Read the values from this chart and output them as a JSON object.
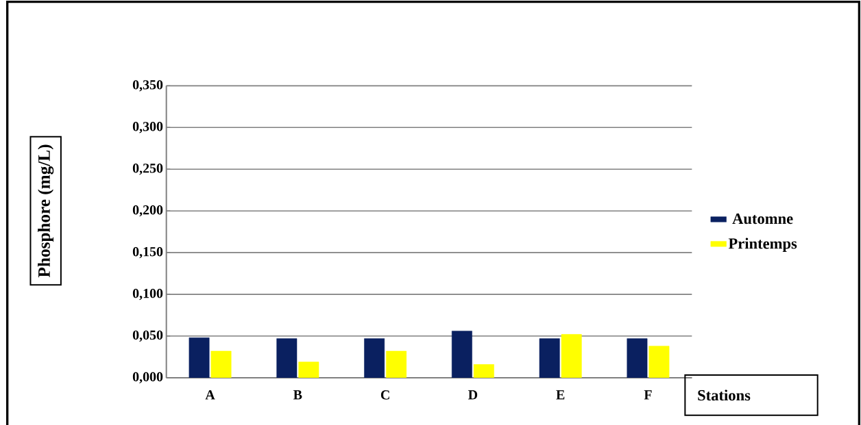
{
  "chart_data": {
    "type": "bar",
    "xlabel": "Stations",
    "ylabel": "Phosphore (mg/L)",
    "categories": [
      "A",
      "B",
      "C",
      "D",
      "E",
      "F"
    ],
    "series": [
      {
        "name": "Automne",
        "color": "#0a2060",
        "values": [
          0.048,
          0.047,
          0.047,
          0.056,
          0.047,
          0.047
        ]
      },
      {
        "name": "Printemps",
        "color": "#ffff00",
        "values": [
          0.032,
          0.019,
          0.032,
          0.016,
          0.052,
          0.038
        ]
      }
    ],
    "ylim": [
      0,
      0.35
    ],
    "yticks": [
      {
        "value": 0,
        "label": "0,000"
      },
      {
        "value": 0.05,
        "label": "0,050"
      },
      {
        "value": 0.1,
        "label": "0,100"
      },
      {
        "value": 0.15,
        "label": "0,150"
      },
      {
        "value": 0.2,
        "label": "0,200"
      },
      {
        "value": 0.25,
        "label": "0,250"
      },
      {
        "value": 0.3,
        "label": "0,300"
      },
      {
        "value": 0.35,
        "label": "0,350"
      }
    ],
    "grid": "y",
    "legend": "right"
  }
}
